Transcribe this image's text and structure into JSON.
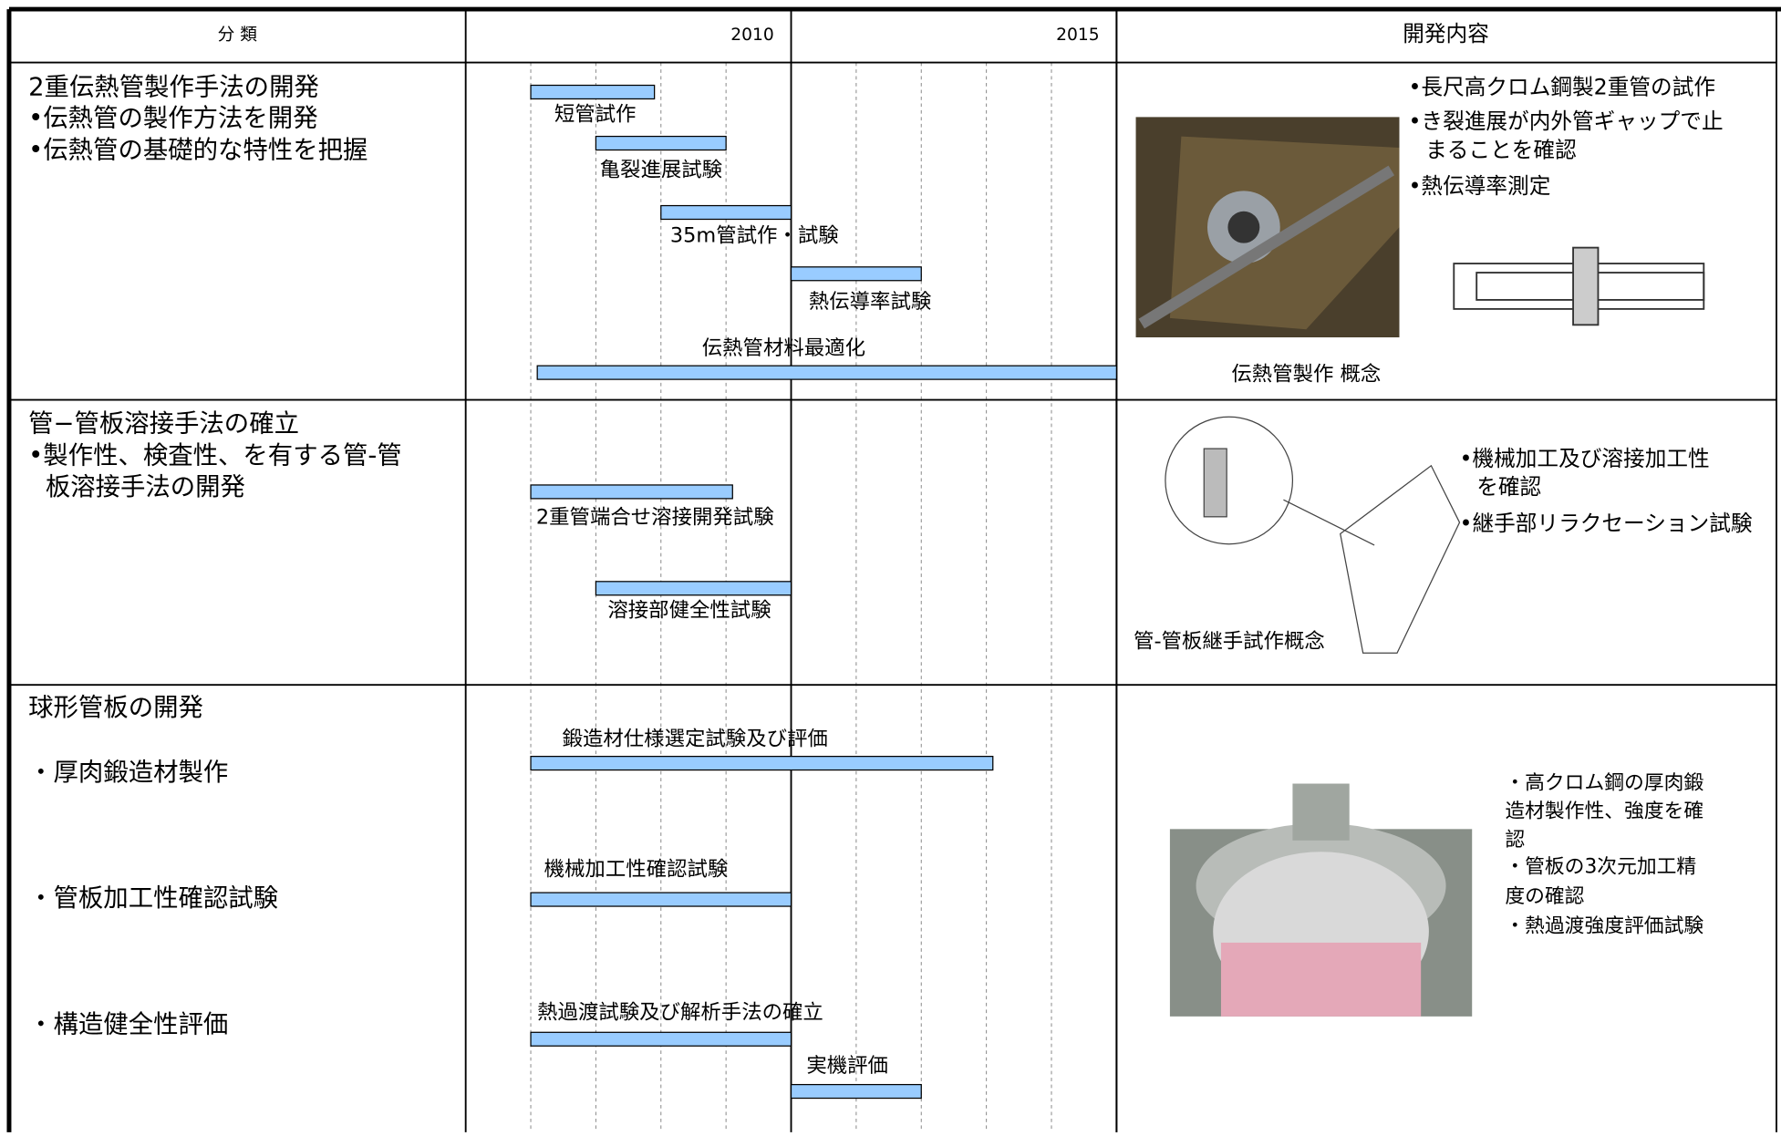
{
  "header": {
    "category": "分 類",
    "details": "開発内容"
  },
  "timeline": {
    "xlim": [
      2005,
      2015
    ],
    "ticks": [
      2010,
      2015
    ],
    "gridlines": [
      2006,
      2007,
      2008,
      2009,
      2011,
      2012,
      2013,
      2014
    ]
  },
  "rows": [
    {
      "category": [
        "2重伝熱管製作手法の開発",
        "•伝熱管の製作方法を開発",
        "•伝熱管の基礎的な特性を把握"
      ],
      "tasks": [
        {
          "label": "短管試作",
          "start": 2006,
          "end": 2007.9
        },
        {
          "label": "亀裂進展試験",
          "start": 2007,
          "end": 2009
        },
        {
          "label": "35m管試作・試験",
          "start": 2008,
          "end": 2010
        },
        {
          "label": "熱伝導率試験",
          "start": 2010,
          "end": 2012
        },
        {
          "label": "伝熱管材料最適化",
          "start": 2006.1,
          "end": 2015
        }
      ],
      "details": [
        "•長尺高クロム鋼製2重管の試作",
        "•き裂進展が内外管ギャップで止",
        "まることを確認",
        "•熱伝導率測定"
      ],
      "caption": "伝熱管製作 概念"
    },
    {
      "category": [
        "管−管板溶接手法の確立",
        "•製作性、検査性、を有する管-管",
        "板溶接手法の開発"
      ],
      "tasks": [
        {
          "label": "2重管端合せ溶接開発試験",
          "start": 2006,
          "end": 2009.1
        },
        {
          "label": "溶接部健全性試験",
          "start": 2007,
          "end": 2010
        }
      ],
      "details": [
        "•機械加工及び溶接加工性",
        "を確認",
        "•継手部リラクセーション試験"
      ],
      "caption": "管-管板継手試作概念"
    },
    {
      "category": [
        "球形管板の開発",
        "・厚肉鍛造材製作",
        "・管板加工性確認試験",
        "・構造健全性評価"
      ],
      "tasks": [
        {
          "label": "鍛造材仕様選定試験及び評価",
          "start": 2006,
          "end": 2013.1
        },
        {
          "label": "機械加工性確認試験",
          "start": 2006,
          "end": 2010
        },
        {
          "label": "熱過渡試験及び解析手法の確立",
          "start": 2006,
          "end": 2010
        },
        {
          "label": "実機評価",
          "start": 2010,
          "end": 2012
        }
      ],
      "details": [
        "・高クロム鋼の厚肉鍛",
        "造材製作性、強度を確",
        "認",
        "・管板の3次元加工精",
        "度の確認",
        "・熱過渡強度評価試験"
      ]
    }
  ]
}
